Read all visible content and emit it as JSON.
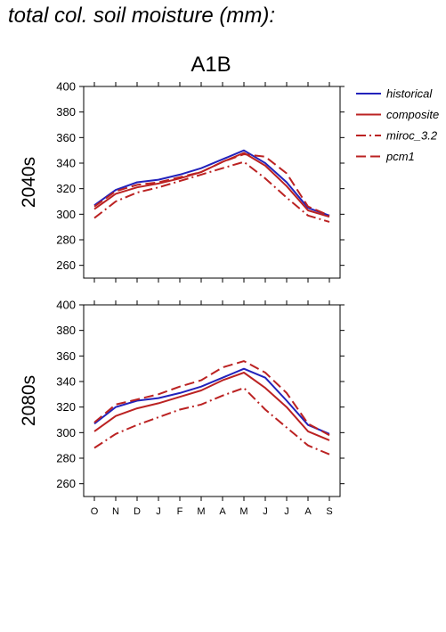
{
  "page": {
    "title": "total col. soil moisture (mm):"
  },
  "colors": {
    "historical": "#2222bb",
    "future": "#bb2222"
  },
  "chart_data": {
    "type": "line",
    "scenario": "A1B",
    "months": [
      "O",
      "N",
      "D",
      "J",
      "F",
      "M",
      "A",
      "M",
      "J",
      "J",
      "A",
      "S"
    ],
    "ylim": [
      250,
      400
    ],
    "yticks": [
      260,
      280,
      300,
      320,
      340,
      360,
      380,
      400
    ],
    "legend": {
      "position": "top-right",
      "entries": [
        {
          "name": "historical",
          "color": "#2222bb",
          "dash": "solid"
        },
        {
          "name": "composite",
          "color": "#bb2222",
          "dash": "solid"
        },
        {
          "name": "miroc_3.2",
          "color": "#bb2222",
          "dash": "dashdot"
        },
        {
          "name": "pcm1",
          "color": "#bb2222",
          "dash": "dash"
        }
      ]
    },
    "panels": [
      {
        "label": "2040s",
        "series": [
          {
            "name": "historical",
            "color": "#2222bb",
            "dash": "solid",
            "values": [
              307,
              319,
              325,
              327,
              331,
              336,
              343,
              350,
              340,
              325,
              305,
              299
            ]
          },
          {
            "name": "composite",
            "color": "#bb2222",
            "dash": "solid",
            "values": [
              304,
              316,
              321,
              324,
              328,
              333,
              341,
              348,
              338,
              322,
              303,
              298
            ]
          },
          {
            "name": "miroc_3.2",
            "color": "#bb2222",
            "dash": "dashdot",
            "values": [
              297,
              310,
              317,
              321,
              326,
              331,
              336,
              341,
              328,
              313,
              299,
              294
            ]
          },
          {
            "name": "pcm1",
            "color": "#bb2222",
            "dash": "dash",
            "values": [
              306,
              318,
              323,
              325,
              329,
              333,
              341,
              347,
              345,
              332,
              306,
              299
            ]
          }
        ]
      },
      {
        "label": "2080s",
        "series": [
          {
            "name": "historical",
            "color": "#2222bb",
            "dash": "solid",
            "values": [
              307,
              320,
              325,
              327,
              331,
              336,
              343,
              350,
              343,
              325,
              306,
              299
            ]
          },
          {
            "name": "composite",
            "color": "#bb2222",
            "dash": "solid",
            "values": [
              301,
              313,
              319,
              323,
              328,
              333,
              341,
              347,
              335,
              320,
              301,
              294
            ]
          },
          {
            "name": "miroc_3.2",
            "color": "#bb2222",
            "dash": "dashdot",
            "values": [
              288,
              299,
              306,
              312,
              318,
              322,
              329,
              335,
              318,
              304,
              290,
              283
            ]
          },
          {
            "name": "pcm1",
            "color": "#bb2222",
            "dash": "dash",
            "values": [
              308,
              322,
              326,
              330,
              336,
              341,
              351,
              356,
              347,
              331,
              307,
              298
            ]
          }
        ]
      }
    ]
  }
}
